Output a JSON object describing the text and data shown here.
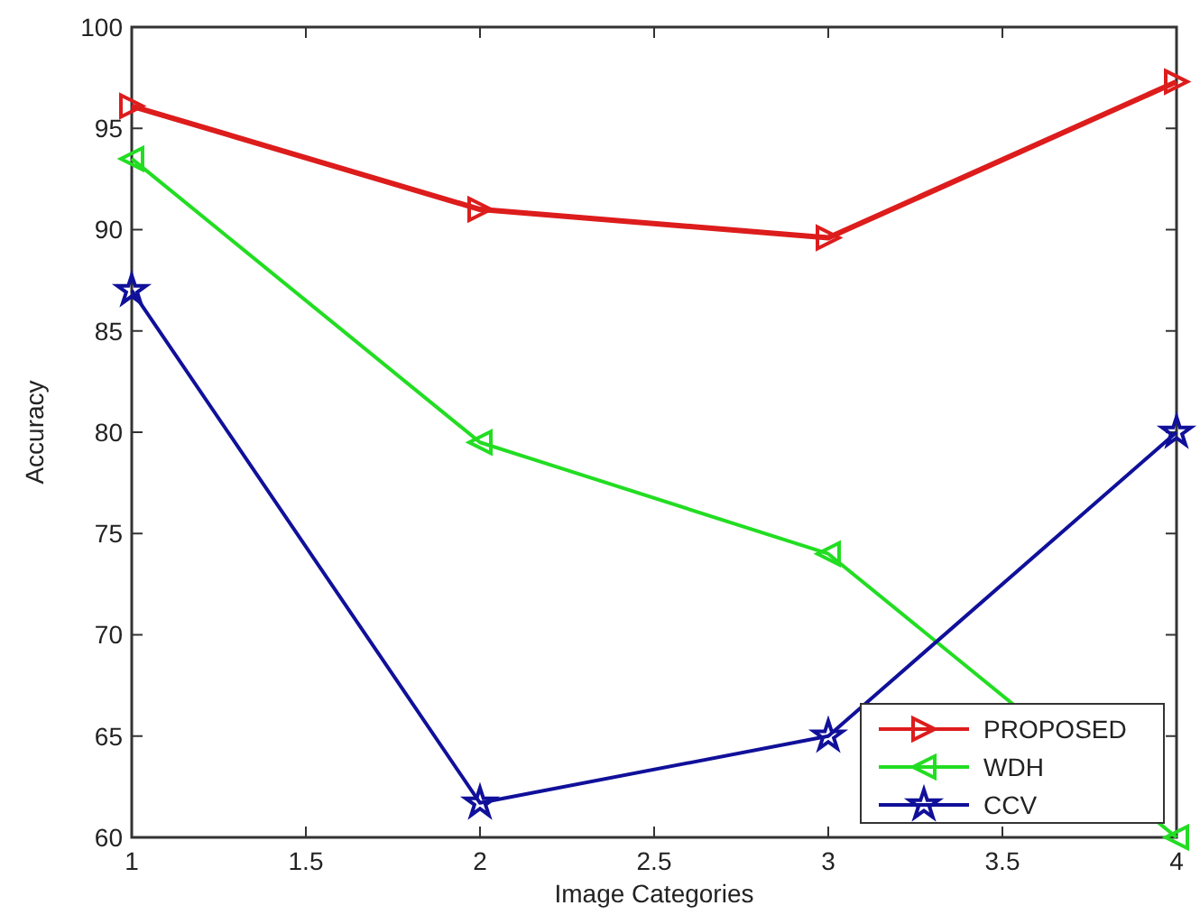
{
  "chart_data": {
    "type": "line",
    "xlabel": "Image Categories",
    "ylabel": "Accuracy",
    "x": [
      1,
      2,
      3,
      4
    ],
    "series": [
      {
        "name": "PROPOSED",
        "color": "#dd1c1c",
        "values": [
          96.1,
          91,
          89.6,
          97.3
        ],
        "marker": "triangle-right"
      },
      {
        "name": "WDH",
        "color": "#22dd22",
        "values": [
          93.5,
          79.5,
          74,
          60
        ],
        "marker": "triangle-left"
      },
      {
        "name": "CCV",
        "color": "#10109a",
        "values": [
          87,
          61.7,
          65,
          80
        ],
        "marker": "star"
      }
    ],
    "xlim": [
      1,
      4
    ],
    "xticks": [
      1,
      1.5,
      2,
      2.5,
      3,
      3.5,
      4
    ],
    "ylim": [
      60,
      100
    ],
    "yticks": [
      60,
      65,
      70,
      75,
      80,
      85,
      90,
      95,
      100
    ],
    "grid": false,
    "legend": "bottom right",
    "line_style": "solid"
  }
}
